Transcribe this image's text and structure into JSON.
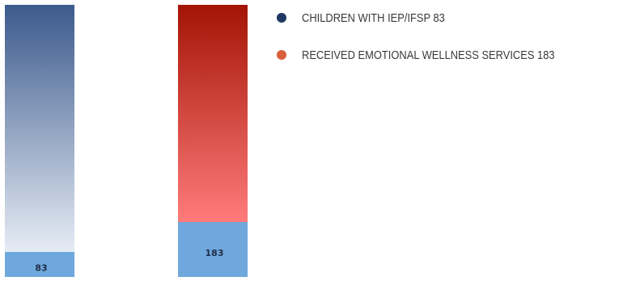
{
  "chart_data": {
    "type": "bar",
    "categories": [
      "CHILDREN WITH IEP/IFSP",
      "RECEIVED EMOTIONAL WELLNESS SERVICES"
    ],
    "values": [
      83,
      183
    ],
    "value_labels": [
      "83",
      "183"
    ],
    "legend": [
      {
        "text": "CHILDREN WITH IEP/IFSP  83",
        "color": "#1f3864"
      },
      {
        "text": "RECEIVED EMOTIONAL WELLNESS SERVICES 183",
        "color": "#d9603b"
      }
    ],
    "bar_colors": {
      "series_0_top": "#3c5a8c",
      "series_0_bottom": "#e6ecf5",
      "series_1_top": "#a31405",
      "series_1_bottom": "#ff7b7b",
      "value_band": "#6fa8dc"
    },
    "legend_position": "right",
    "grid": false
  }
}
